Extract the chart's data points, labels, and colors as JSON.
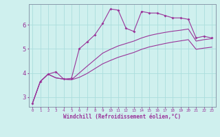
{
  "xlabel": "Windchill (Refroidissement éolien,°C)",
  "background_color": "#cff0ee",
  "line_color": "#993399",
  "grid_color": "#aadddd",
  "xlim": [
    -0.5,
    23.5
  ],
  "ylim": [
    2.6,
    6.85
  ],
  "yticks": [
    3,
    4,
    5,
    6
  ],
  "xticks": [
    0,
    1,
    2,
    3,
    4,
    5,
    6,
    7,
    8,
    9,
    10,
    11,
    12,
    13,
    14,
    15,
    16,
    17,
    18,
    19,
    20,
    21,
    22,
    23
  ],
  "series1_x": [
    0,
    1,
    2,
    3,
    4,
    5,
    6,
    7,
    8,
    9,
    10,
    11,
    12,
    13,
    14,
    15,
    16,
    17,
    18,
    19,
    20,
    21,
    22,
    23
  ],
  "series1_y": [
    2.75,
    3.65,
    3.95,
    4.05,
    3.75,
    3.78,
    5.0,
    5.28,
    5.58,
    6.05,
    6.65,
    6.6,
    5.85,
    5.72,
    6.55,
    6.48,
    6.48,
    6.38,
    6.28,
    6.28,
    6.22,
    5.45,
    5.52,
    5.45
  ],
  "series2_x": [
    0,
    1,
    2,
    3,
    4,
    5,
    6,
    7,
    8,
    9,
    10,
    11,
    12,
    13,
    14,
    15,
    16,
    17,
    18,
    19,
    20,
    21,
    22,
    23
  ],
  "series2_y": [
    2.75,
    3.65,
    3.95,
    3.8,
    3.75,
    3.72,
    4.0,
    4.28,
    4.55,
    4.82,
    4.98,
    5.12,
    5.22,
    5.32,
    5.45,
    5.55,
    5.62,
    5.68,
    5.73,
    5.77,
    5.82,
    5.32,
    5.38,
    5.42
  ],
  "series3_x": [
    0,
    1,
    2,
    3,
    4,
    5,
    6,
    7,
    8,
    9,
    10,
    11,
    12,
    13,
    14,
    15,
    16,
    17,
    18,
    19,
    20,
    21,
    22,
    23
  ],
  "series3_y": [
    2.75,
    3.65,
    3.95,
    3.8,
    3.75,
    3.72,
    3.82,
    3.98,
    4.18,
    4.38,
    4.52,
    4.65,
    4.75,
    4.85,
    4.98,
    5.08,
    5.15,
    5.22,
    5.28,
    5.33,
    5.38,
    4.98,
    5.03,
    5.07
  ]
}
